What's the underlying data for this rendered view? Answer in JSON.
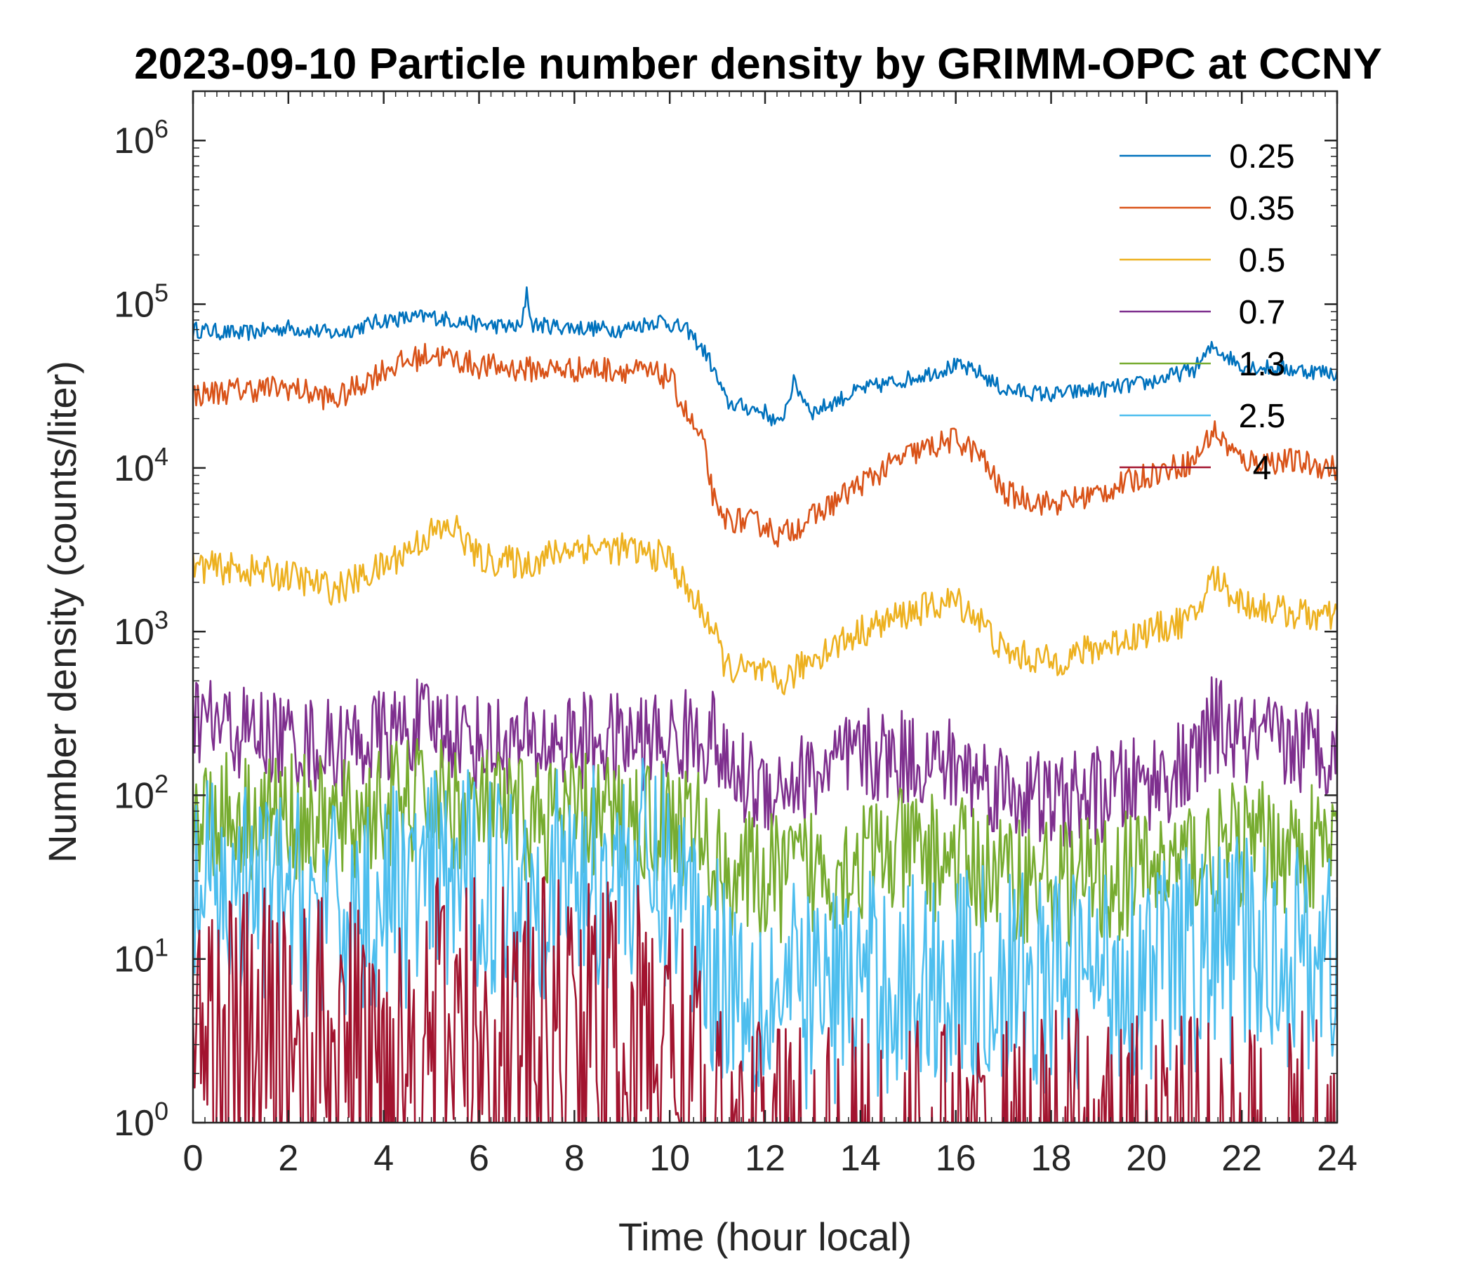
{
  "chart_data": {
    "type": "line",
    "title": "2023-09-10 Particle number density by GRIMM-OPC at CCNY",
    "xlabel": "Time (hour local)",
    "ylabel": "Number density (counts/liter)",
    "xlim": [
      0,
      24
    ],
    "ylim": [
      1,
      2000000
    ],
    "yscale": "log",
    "grid": false,
    "legend_position": "top-right",
    "x_ticks": [
      "0",
      "2",
      "4",
      "6",
      "8",
      "10",
      "12",
      "14",
      "16",
      "18",
      "20",
      "22",
      "24"
    ],
    "y_ticks": [
      {
        "base": "10",
        "exp": "0"
      },
      {
        "base": "10",
        "exp": "1"
      },
      {
        "base": "10",
        "exp": "2"
      },
      {
        "base": "10",
        "exp": "3"
      },
      {
        "base": "10",
        "exp": "4"
      },
      {
        "base": "10",
        "exp": "5"
      },
      {
        "base": "10",
        "exp": "6"
      }
    ],
    "series": [
      {
        "name": "0.25",
        "color": "#0072BD",
        "noise": 0.05,
        "points": [
          [
            0,
            70000
          ],
          [
            1,
            66000
          ],
          [
            2,
            72000
          ],
          [
            3,
            66000
          ],
          [
            4,
            80000
          ],
          [
            5,
            84000
          ],
          [
            6,
            75000
          ],
          [
            6.9,
            72000
          ],
          [
            7,
            125000
          ],
          [
            7.1,
            75000
          ],
          [
            8,
            72000
          ],
          [
            9,
            70000
          ],
          [
            9.8,
            80000
          ],
          [
            10.4,
            68000
          ],
          [
            10.8,
            48000
          ],
          [
            11.2,
            25000
          ],
          [
            12,
            22000
          ],
          [
            12.3,
            18000
          ],
          [
            12.6,
            33000
          ],
          [
            13,
            22000
          ],
          [
            14,
            30000
          ],
          [
            15,
            35000
          ],
          [
            16,
            42000
          ],
          [
            16.5,
            38000
          ],
          [
            17,
            30000
          ],
          [
            18,
            28000
          ],
          [
            19,
            30000
          ],
          [
            20,
            33000
          ],
          [
            21,
            40000
          ],
          [
            21.4,
            55000
          ],
          [
            22,
            42000
          ],
          [
            23,
            40000
          ],
          [
            24,
            38000
          ]
        ]
      },
      {
        "name": "0.35",
        "color": "#D95319",
        "noise": 0.08,
        "points": [
          [
            0,
            28000
          ],
          [
            1,
            30000
          ],
          [
            2,
            31000
          ],
          [
            3,
            26000
          ],
          [
            4,
            40000
          ],
          [
            5,
            50000
          ],
          [
            6,
            42000
          ],
          [
            7,
            40000
          ],
          [
            8,
            40000
          ],
          [
            9,
            40000
          ],
          [
            10,
            36000
          ],
          [
            10.4,
            20000
          ],
          [
            10.7,
            14000
          ],
          [
            11,
            5000
          ],
          [
            12,
            4500
          ],
          [
            12.3,
            3800
          ],
          [
            13,
            5000
          ],
          [
            14,
            8000
          ],
          [
            15,
            12000
          ],
          [
            16,
            15000
          ],
          [
            16.5,
            12000
          ],
          [
            17,
            7000
          ],
          [
            18,
            6000
          ],
          [
            19,
            7000
          ],
          [
            20,
            9000
          ],
          [
            21,
            11000
          ],
          [
            21.4,
            17000
          ],
          [
            22,
            11000
          ],
          [
            23,
            11000
          ],
          [
            24,
            10000
          ]
        ]
      },
      {
        "name": "0.5",
        "color": "#EDB120",
        "noise": 0.1,
        "points": [
          [
            0,
            2500
          ],
          [
            1,
            2400
          ],
          [
            2,
            2200
          ],
          [
            3,
            1800
          ],
          [
            4,
            2500
          ],
          [
            5,
            4000
          ],
          [
            5.5,
            4300
          ],
          [
            6,
            2800
          ],
          [
            7,
            2600
          ],
          [
            8,
            3300
          ],
          [
            9,
            3200
          ],
          [
            10,
            2800
          ],
          [
            10.4,
            1700
          ],
          [
            10.8,
            1200
          ],
          [
            11.2,
            600
          ],
          [
            12,
            550
          ],
          [
            12.3,
            470
          ],
          [
            13,
            700
          ],
          [
            14,
            1000
          ],
          [
            15,
            1300
          ],
          [
            16,
            1550
          ],
          [
            16.5,
            1200
          ],
          [
            17,
            750
          ],
          [
            18,
            650
          ],
          [
            19,
            800
          ],
          [
            20,
            1000
          ],
          [
            21,
            1200
          ],
          [
            21.4,
            2200
          ],
          [
            22,
            1500
          ],
          [
            23,
            1300
          ],
          [
            24,
            1200
          ]
        ]
      },
      {
        "name": "0.7",
        "color": "#7E2F8E",
        "noise": 0.3,
        "points": [
          [
            0,
            300
          ],
          [
            1,
            240
          ],
          [
            2,
            220
          ],
          [
            3,
            190
          ],
          [
            4,
            230
          ],
          [
            5,
            270
          ],
          [
            6,
            210
          ],
          [
            7,
            200
          ],
          [
            8,
            220
          ],
          [
            9,
            210
          ],
          [
            10,
            220
          ],
          [
            11,
            230
          ],
          [
            11.1,
            140
          ],
          [
            12,
            110
          ],
          [
            13,
            130
          ],
          [
            14,
            170
          ],
          [
            15,
            170
          ],
          [
            16,
            150
          ],
          [
            17,
            110
          ],
          [
            18,
            90
          ],
          [
            19,
            100
          ],
          [
            20,
            120
          ],
          [
            21,
            150
          ],
          [
            21.4,
            280
          ],
          [
            22,
            210
          ],
          [
            23,
            200
          ],
          [
            24,
            200
          ]
        ]
      },
      {
        "name": "1.3",
        "color": "#77AC30",
        "noise": 0.4,
        "points": [
          [
            0,
            80
          ],
          [
            2,
            75
          ],
          [
            3,
            65
          ],
          [
            4,
            85
          ],
          [
            5,
            95
          ],
          [
            6,
            80
          ],
          [
            7,
            70
          ],
          [
            8,
            75
          ],
          [
            9,
            72
          ],
          [
            10,
            70
          ],
          [
            10.5,
            65
          ],
          [
            11,
            35
          ],
          [
            12,
            30
          ],
          [
            13,
            35
          ],
          [
            14,
            40
          ],
          [
            15,
            45
          ],
          [
            16,
            40
          ],
          [
            17,
            32
          ],
          [
            18,
            30
          ],
          [
            19,
            30
          ],
          [
            20,
            35
          ],
          [
            21,
            40
          ],
          [
            22,
            50
          ],
          [
            23,
            48
          ],
          [
            24,
            45
          ]
        ]
      },
      {
        "name": "2.5",
        "color": "#4DBEEE",
        "noise": 0.7,
        "points": [
          [
            0,
            25
          ],
          [
            2,
            22
          ],
          [
            3,
            18
          ],
          [
            4,
            22
          ],
          [
            5,
            28
          ],
          [
            6,
            30
          ],
          [
            7,
            28
          ],
          [
            8,
            30
          ],
          [
            9,
            35
          ],
          [
            10,
            32
          ],
          [
            10.5,
            20
          ],
          [
            10.8,
            10
          ],
          [
            12,
            6
          ],
          [
            13,
            6
          ],
          [
            14,
            7
          ],
          [
            15,
            7
          ],
          [
            16,
            8
          ],
          [
            17,
            7
          ],
          [
            18,
            7
          ],
          [
            19,
            8
          ],
          [
            20,
            9
          ],
          [
            21,
            10
          ],
          [
            22,
            12
          ],
          [
            24,
            10
          ]
        ]
      },
      {
        "name": "4",
        "color": "#A2142F",
        "noise": 1.0,
        "points": [
          [
            0,
            3
          ],
          [
            2,
            3
          ],
          [
            3,
            2.5
          ],
          [
            4,
            2.2
          ],
          [
            5,
            3.5
          ],
          [
            6,
            3.5
          ],
          [
            7,
            3
          ],
          [
            8,
            4
          ],
          [
            9,
            3
          ],
          [
            10,
            3
          ],
          [
            10.6,
            2.5
          ],
          [
            10.65,
            0.5
          ],
          [
            24,
            0.5
          ]
        ]
      }
    ]
  }
}
